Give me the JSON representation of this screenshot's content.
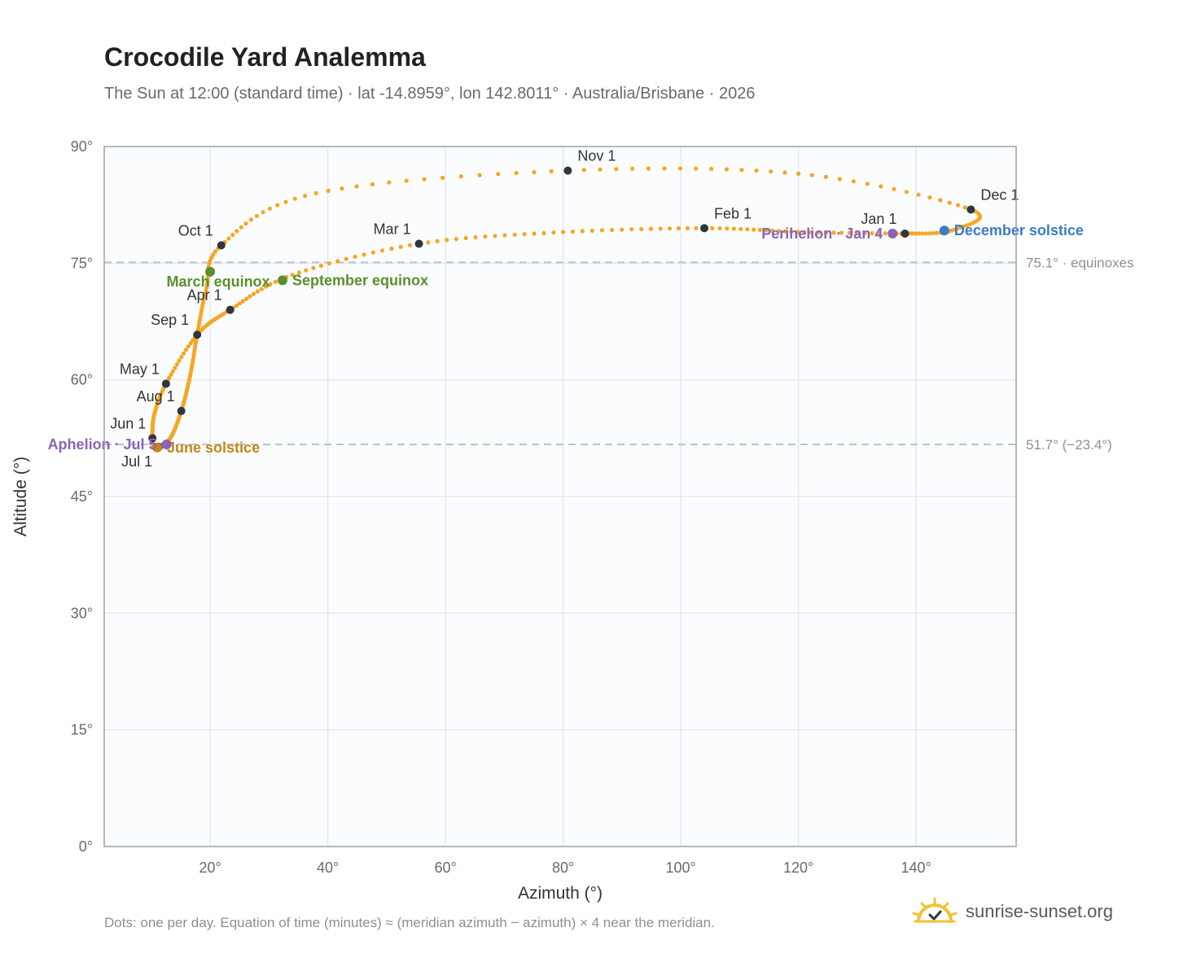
{
  "title": "Crocodile Yard Analemma",
  "subtitle": "The Sun at 12:00 (standard time) · lat -14.8959°, lon 142.8011° · Australia/Brisbane · 2026",
  "footnote": "Dots: one per day. Equation of time (minutes) ≈ (meridian azimuth − azimuth) × 4 near the meridian.",
  "brand": {
    "text": "sunrise-sunset.org",
    "icon": "sun-check-icon"
  },
  "colors": {
    "curve": "#f5a623",
    "month_marker": "#2d3540",
    "equinox": "#5a8f2c",
    "june_solstice": "#c8861a",
    "december_solstice": "#3b7cc4",
    "apsis": "#8c63b8",
    "plot_bg": "#fbfcfe",
    "grid": "#e4e8ee",
    "ref_line": "#b9c3cf"
  },
  "chart_data": {
    "type": "scatter",
    "xlabel": "Azimuth (°)",
    "ylabel": "Altitude (°)",
    "xlim": [
      2,
      157
    ],
    "ylim": [
      0,
      90
    ],
    "x_ticks": [
      20,
      40,
      60,
      80,
      100,
      120,
      140
    ],
    "x_tick_labels": [
      "20°",
      "40°",
      "60°",
      "80°",
      "100°",
      "120°",
      "140°"
    ],
    "y_ticks": [
      0,
      15,
      30,
      45,
      60,
      75,
      90
    ],
    "y_tick_labels": [
      "0°",
      "15°",
      "30°",
      "45°",
      "60°",
      "75°",
      "90°"
    ],
    "grid": true,
    "series": [
      {
        "points": [
          {
            "date": "Jan 1",
            "az": 138.1,
            "alt": 78.8
          },
          {
            "date": "Jan 15",
            "az": 121.0,
            "alt": 79.0
          },
          {
            "date": "Feb 1",
            "az": 104.0,
            "alt": 79.5
          },
          {
            "date": "Feb 15",
            "az": 80.0,
            "alt": 79.0
          },
          {
            "date": "Mar 1",
            "az": 55.5,
            "alt": 77.5
          },
          {
            "date": "Mar 15",
            "az": 34.0,
            "alt": 73.5
          },
          {
            "date": "Apr 1",
            "az": 23.4,
            "alt": 69.0
          },
          {
            "date": "Apr 15",
            "az": 17.8,
            "alt": 65.8
          },
          {
            "date": "May 1",
            "az": 12.5,
            "alt": 59.5
          },
          {
            "date": "May 15",
            "az": 10.5,
            "alt": 55.5
          },
          {
            "date": "Jun 1",
            "az": 10.2,
            "alt": 52.5
          },
          {
            "date": "Jun 15",
            "az": 10.5,
            "alt": 51.2
          },
          {
            "date": "Jul 1",
            "az": 11.3,
            "alt": 51.4
          },
          {
            "date": "Jul 15",
            "az": 13.3,
            "alt": 52.6
          },
          {
            "date": "Aug 1",
            "az": 15.1,
            "alt": 56.0
          },
          {
            "date": "Aug 15",
            "az": 16.6,
            "alt": 60.5
          },
          {
            "date": "Sep 1",
            "az": 17.8,
            "alt": 65.8
          },
          {
            "date": "Sep 15",
            "az": 19.3,
            "alt": 71.5
          },
          {
            "date": "Oct 1",
            "az": 21.9,
            "alt": 77.3
          },
          {
            "date": "Oct 15",
            "az": 38.0,
            "alt": 84.0
          },
          {
            "date": "Nov 1",
            "az": 80.8,
            "alt": 86.9
          },
          {
            "date": "Nov 15",
            "az": 120.0,
            "alt": 86.5
          },
          {
            "date": "Dec 1",
            "az": 149.3,
            "alt": 81.9
          },
          {
            "date": "Dec 15",
            "az": 146.0,
            "alt": 79.2
          },
          {
            "date": "Dec 31",
            "az": 138.3,
            "alt": 78.8
          }
        ]
      }
    ],
    "month_markers": [
      {
        "label": "Jan 1",
        "az": 138.1,
        "alt": 78.8,
        "anchor": "top-left"
      },
      {
        "label": "Feb 1",
        "az": 104.0,
        "alt": 79.5,
        "anchor": "top-right"
      },
      {
        "label": "Mar 1",
        "az": 55.5,
        "alt": 77.5,
        "anchor": "top-left"
      },
      {
        "label": "Apr 1",
        "az": 23.4,
        "alt": 69.0,
        "anchor": "top-left"
      },
      {
        "label": "May 1",
        "az": 12.5,
        "alt": 59.5,
        "anchor": "bottom-left"
      },
      {
        "label": "Jun 1",
        "az": 10.2,
        "alt": 52.5,
        "anchor": "bottom-left"
      },
      {
        "label": "Jul 1",
        "az": 11.3,
        "alt": 51.4,
        "anchor": "below-left"
      },
      {
        "label": "Aug 1",
        "az": 15.1,
        "alt": 56.0,
        "anchor": "bottom-left"
      },
      {
        "label": "Sep 1",
        "az": 17.8,
        "alt": 65.8,
        "anchor": "top-left"
      },
      {
        "label": "Oct 1",
        "az": 21.9,
        "alt": 77.3,
        "anchor": "top-left"
      },
      {
        "label": "Nov 1",
        "az": 80.8,
        "alt": 86.9,
        "anchor": "top-right"
      },
      {
        "label": "Dec 1",
        "az": 149.3,
        "alt": 81.9,
        "anchor": "top-right"
      }
    ],
    "events": [
      {
        "label": "March equinox",
        "az": 20.0,
        "alt": 73.9,
        "kind": "equinox",
        "anchor": "below-center"
      },
      {
        "label": "September equinox",
        "az": 32.3,
        "alt": 72.8,
        "kind": "equinox",
        "anchor": "right"
      },
      {
        "label": "June solstice",
        "az": 11.0,
        "alt": 51.3,
        "kind": "june_solstice",
        "anchor": "right"
      },
      {
        "label": "December solstice",
        "az": 144.8,
        "alt": 79.2,
        "kind": "december_solstice",
        "anchor": "right"
      },
      {
        "label": "Aphelion · Jul 5",
        "az": 12.6,
        "alt": 51.7,
        "kind": "apsis",
        "anchor": "left"
      },
      {
        "label": "Perihelion · Jan 4",
        "az": 136.0,
        "alt": 78.8,
        "kind": "apsis",
        "anchor": "left"
      }
    ],
    "reference_lines": [
      {
        "alt": 75.1,
        "label": "75.1° · equinoxes"
      },
      {
        "alt": 51.7,
        "label": "51.7° (−23.4°)"
      }
    ]
  }
}
